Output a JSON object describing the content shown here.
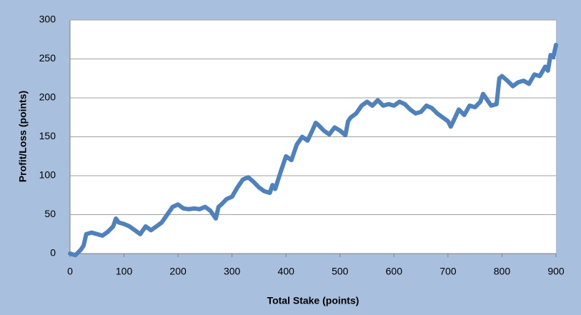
{
  "chart_data": {
    "type": "line",
    "xlabel": "Total Stake (points)",
    "ylabel": "Profit/Loss (points)",
    "xlim": [
      0,
      900
    ],
    "xticks": [
      0,
      100,
      200,
      300,
      400,
      500,
      600,
      700,
      800,
      900
    ],
    "ylim": [
      0,
      300
    ],
    "yticks": [
      0,
      50,
      100,
      150,
      200,
      250,
      300
    ],
    "grid": true,
    "series": [
      {
        "name": "Profit/Loss",
        "color": "#4f81bd",
        "x": [
          0,
          10,
          20,
          25,
          30,
          40,
          50,
          60,
          70,
          80,
          85,
          90,
          100,
          110,
          120,
          130,
          140,
          150,
          160,
          170,
          180,
          190,
          200,
          210,
          220,
          230,
          240,
          250,
          260,
          270,
          275,
          280,
          290,
          300,
          310,
          320,
          330,
          340,
          350,
          360,
          370,
          375,
          380,
          390,
          400,
          410,
          420,
          430,
          440,
          450,
          455,
          460,
          470,
          480,
          490,
          500,
          510,
          515,
          520,
          530,
          540,
          550,
          560,
          570,
          580,
          590,
          600,
          610,
          620,
          630,
          640,
          650,
          660,
          670,
          680,
          690,
          700,
          705,
          710,
          720,
          730,
          740,
          750,
          760,
          765,
          770,
          780,
          790,
          795,
          800,
          810,
          820,
          830,
          840,
          850,
          860,
          870,
          880,
          885,
          890,
          895,
          900
        ],
        "values": [
          0,
          -2,
          5,
          10,
          25,
          27,
          25,
          23,
          28,
          35,
          45,
          40,
          38,
          35,
          30,
          25,
          35,
          30,
          35,
          40,
          50,
          60,
          63,
          58,
          57,
          58,
          57,
          60,
          55,
          45,
          60,
          63,
          70,
          73,
          85,
          95,
          98,
          92,
          85,
          80,
          78,
          88,
          83,
          105,
          125,
          120,
          140,
          150,
          145,
          160,
          168,
          165,
          158,
          153,
          162,
          158,
          152,
          170,
          175,
          180,
          190,
          195,
          190,
          197,
          190,
          192,
          190,
          195,
          192,
          185,
          180,
          182,
          190,
          187,
          180,
          175,
          170,
          163,
          170,
          185,
          178,
          190,
          188,
          195,
          205,
          200,
          190,
          192,
          225,
          228,
          222,
          215,
          220,
          222,
          218,
          230,
          228,
          240,
          235,
          255,
          252,
          268
        ]
      }
    ]
  }
}
